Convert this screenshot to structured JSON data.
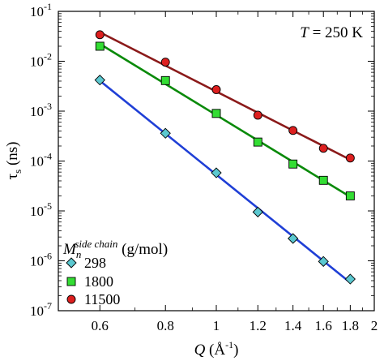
{
  "chart_data": {
    "type": "scatter",
    "xlabel_symbol": "Q",
    "xlabel_unit": "(Å",
    "xlabel_exp": "-1",
    "xlabel_close": ")",
    "ylabel_symbol": "τ",
    "ylabel_sub": "s",
    "ylabel_unit": "(ns)",
    "annotation_symbol": "T",
    "annotation_value": "= 250 K",
    "x_scale": "log",
    "y_scale": "log",
    "xlim": [
      0.5,
      2.0
    ],
    "ylim": [
      1e-07,
      0.1
    ],
    "x_ticks": [
      {
        "value": 0.6,
        "label": "0.6"
      },
      {
        "value": 0.8,
        "label": "0.8"
      },
      {
        "value": 1.0,
        "label": "1"
      },
      {
        "value": 1.2,
        "label": "1.2"
      },
      {
        "value": 1.4,
        "label": "1.4"
      },
      {
        "value": 1.6,
        "label": "1.6"
      },
      {
        "value": 1.8,
        "label": "1.8"
      },
      {
        "value": 2.0,
        "label": "2"
      }
    ],
    "y_ticks": [
      {
        "value": 1e-07,
        "base": "10",
        "exp": "-7"
      },
      {
        "value": 1e-06,
        "base": "10",
        "exp": "-6"
      },
      {
        "value": 1e-05,
        "base": "10",
        "exp": "-5"
      },
      {
        "value": 0.0001,
        "base": "10",
        "exp": "-4"
      },
      {
        "value": 0.001,
        "base": "10",
        "exp": "-3"
      },
      {
        "value": 0.01,
        "base": "10",
        "exp": "-2"
      },
      {
        "value": 0.1,
        "base": "10",
        "exp": "-1"
      }
    ],
    "grid": false,
    "legend": {
      "position": "bottom-left",
      "title_symbol": "M",
      "title_sub": "n",
      "title_sup": "side chain",
      "title_unit": "(g/mol)"
    },
    "series": [
      {
        "name": "298",
        "marker": "diamond",
        "fill": "#5bc8d0",
        "line_color": "#1f3fd6",
        "x": [
          0.6,
          0.8,
          1.0,
          1.2,
          1.4,
          1.6,
          1.8
        ],
        "y": [
          0.0042,
          0.00036,
          5.8e-05,
          9.5e-06,
          2.8e-06,
          9.7e-07,
          4.3e-07
        ]
      },
      {
        "name": "1800",
        "marker": "square",
        "fill": "#33dd33",
        "line_color": "#0a8a0a",
        "x": [
          0.6,
          0.8,
          1.0,
          1.2,
          1.4,
          1.6,
          1.8
        ],
        "y": [
          0.02,
          0.0041,
          0.0009,
          0.00024,
          8.7e-05,
          4.1e-05,
          2e-05
        ]
      },
      {
        "name": "11500",
        "marker": "circle",
        "fill": "#dd1f1f",
        "line_color": "#8b1a1a",
        "x": [
          0.6,
          0.8,
          1.0,
          1.2,
          1.4,
          1.6,
          1.8
        ],
        "y": [
          0.034,
          0.0096,
          0.0027,
          0.00083,
          0.00041,
          0.00018,
          0.000115
        ]
      }
    ]
  }
}
